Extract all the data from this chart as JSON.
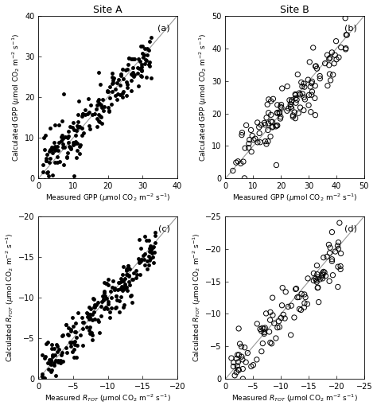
{
  "title_a": "Site A",
  "title_b": "Site B",
  "panel_labels": [
    "(a)",
    "(b)",
    "(c)",
    "(d)"
  ],
  "panel_a": {
    "xlim": [
      0,
      40
    ],
    "ylim": [
      0,
      40
    ],
    "xticks": [
      0,
      10,
      20,
      30,
      40
    ],
    "yticks": [
      0,
      10,
      20,
      30,
      40
    ],
    "xlabel": "Measured GPP ($\\mu$mol CO$_2$ m$^{-2}$ s$^{-1}$)",
    "ylabel": "Calculated GPP ($\\mu$mol CO$_2$ m$^{-2}$ s$^{-1}$)",
    "filled": true,
    "seed": 42,
    "n": 200,
    "x_range": [
      1,
      33
    ],
    "slope": 0.88,
    "intercept": 2.0,
    "noise": 3.2
  },
  "panel_b": {
    "xlim": [
      0,
      50
    ],
    "ylim": [
      0,
      50
    ],
    "xticks": [
      0,
      10,
      20,
      30,
      40,
      50
    ],
    "yticks": [
      0,
      10,
      20,
      30,
      40,
      50
    ],
    "xlabel": "Measured GPP ($\\mu$mol CO$_2$ m$^{-2}$ s$^{-1}$)",
    "ylabel": "Calculated GPP ($\\mu$mol CO$_2$ m$^{-2}$ s$^{-1}$)",
    "filled": false,
    "seed": 123,
    "n": 130,
    "x_range": [
      2,
      44
    ],
    "slope": 0.88,
    "intercept": 2.5,
    "noise": 4.5
  },
  "panel_c": {
    "xlim": [
      0,
      -20
    ],
    "ylim": [
      0,
      -20
    ],
    "xticks": [
      0,
      -5,
      -10,
      -15,
      -20
    ],
    "yticks": [
      0,
      -5,
      -10,
      -15,
      -20
    ],
    "xlabel": "Measured $R_{TOT}$ ($\\mu$mol CO$_2$ m$^{-2}$ s$^{-1}$)",
    "ylabel": "Calculated $R_{TOT}$ ($\\mu$mol CO$_2$ m$^{-2}$ s$^{-1}$)",
    "filled": true,
    "seed": 77,
    "n": 220,
    "x_range": [
      -0.5,
      -17
    ],
    "slope": 0.93,
    "intercept": -0.3,
    "noise": 1.4
  },
  "panel_d": {
    "xlim": [
      0,
      -25
    ],
    "ylim": [
      0,
      -25
    ],
    "xticks": [
      0,
      -5,
      -10,
      -15,
      -20,
      -25
    ],
    "yticks": [
      0,
      -5,
      -10,
      -15,
      -20,
      -25
    ],
    "xlabel": "Measured $R_{TOT}$ ($\\mu$mol CO$_2$ m$^{-2}$ s$^{-1}$)",
    "ylabel": "Calculated $R_{TOT}$ ($\\mu$mol CO$_2$ m$^{-2}$ s$^{-1}$)",
    "filled": false,
    "seed": 88,
    "n": 110,
    "x_range": [
      -1,
      -21
    ],
    "slope": 0.9,
    "intercept": -0.5,
    "noise": 2.0
  },
  "marker_size": 3.5,
  "marker_size_open": 4.5,
  "line_color": "#999999",
  "bg_color": "#ffffff",
  "font_size_label": 6.5,
  "font_size_tick": 7,
  "font_size_panel": 8,
  "font_size_title": 9
}
